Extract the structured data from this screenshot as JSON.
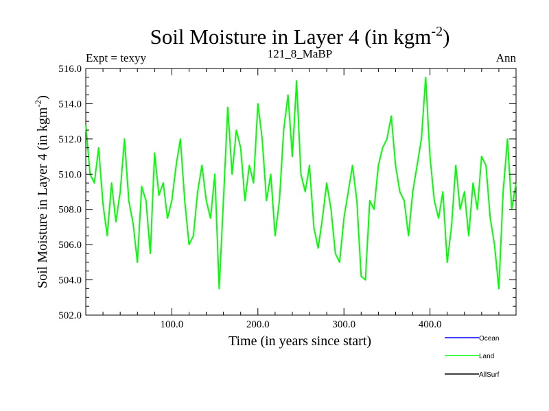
{
  "chart_data": {
    "type": "line",
    "title": "Soil Moisture in Layer 4 (in kgm",
    "title_superscript": "-2",
    "title_close": ")",
    "left_label": "Expt = texyy",
    "center_label": "121_8_MaBP",
    "right_label": "Ann",
    "xlabel": "Time (in years since start)",
    "ylabel": "Soil Moisture in Layer 4 (in kgm",
    "ylabel_superscript": "-2",
    "ylabel_close": ")",
    "xlim": [
      0,
      500
    ],
    "ylim": [
      502,
      516
    ],
    "x_ticks": [
      100,
      200,
      300,
      400
    ],
    "x_tick_labels": [
      "100.0",
      "200.0",
      "300.0",
      "400.0"
    ],
    "y_ticks": [
      502,
      504,
      506,
      508,
      510,
      512,
      514,
      516
    ],
    "y_tick_labels": [
      "502.0",
      "504.0",
      "506.0",
      "508.0",
      "510.0",
      "512.0",
      "514.0",
      "516.0"
    ],
    "grid": false,
    "legend_placement": "bottom-right",
    "series": [
      {
        "name": "Ocean",
        "color": "#0000ff",
        "values": []
      },
      {
        "name": "Land",
        "color": "#00ff00",
        "x": [
          0,
          5,
          10,
          15,
          20,
          25,
          30,
          35,
          40,
          45,
          50,
          55,
          60,
          65,
          70,
          75,
          80,
          85,
          90,
          95,
          100,
          105,
          110,
          115,
          120,
          125,
          130,
          135,
          140,
          145,
          150,
          155,
          160,
          165,
          170,
          175,
          180,
          185,
          190,
          195,
          200,
          205,
          210,
          215,
          220,
          225,
          230,
          235,
          240,
          245,
          250,
          255,
          260,
          265,
          270,
          275,
          280,
          285,
          290,
          295,
          300,
          305,
          310,
          315,
          320,
          325,
          330,
          335,
          340,
          345,
          350,
          355,
          360,
          365,
          370,
          375,
          380,
          385,
          390,
          395,
          400,
          405,
          410,
          415,
          420,
          425,
          430,
          435,
          440,
          445,
          450,
          455,
          460,
          465,
          470,
          475,
          480,
          485,
          490,
          495,
          500
        ],
        "values": [
          512.8,
          510.0,
          509.5,
          511.5,
          508.3,
          506.5,
          509.5,
          507.3,
          509.0,
          512.0,
          508.5,
          507.2,
          505.0,
          509.3,
          508.5,
          505.5,
          511.2,
          508.8,
          509.5,
          507.5,
          508.5,
          510.5,
          512.0,
          508.5,
          506.0,
          506.5,
          509.0,
          510.5,
          508.5,
          507.5,
          510.0,
          503.5,
          508.5,
          513.8,
          510.0,
          512.5,
          511.5,
          508.5,
          510.5,
          509.5,
          514.0,
          512.0,
          508.5,
          510.0,
          506.5,
          508.5,
          512.5,
          514.5,
          511.0,
          515.3,
          510.0,
          509.0,
          510.5,
          507.0,
          505.8,
          507.5,
          509.5,
          508.0,
          505.5,
          505.0,
          507.5,
          509.0,
          510.5,
          508.5,
          504.2,
          504.0,
          508.5,
          508.0,
          510.5,
          511.5,
          512.0,
          513.3,
          510.5,
          509.0,
          508.5,
          506.5,
          509.0,
          510.5,
          512.0,
          515.5,
          511.0,
          508.5,
          507.5,
          509.0,
          505.0,
          507.0,
          510.5,
          508.0,
          509.0,
          506.5,
          509.5,
          508.0,
          511.0,
          510.5,
          507.5,
          506.0,
          503.5,
          509.0,
          512.0,
          508.0,
          509.5
        ]
      },
      {
        "name": "AllSurf",
        "color": "#000000",
        "values": []
      }
    ]
  }
}
